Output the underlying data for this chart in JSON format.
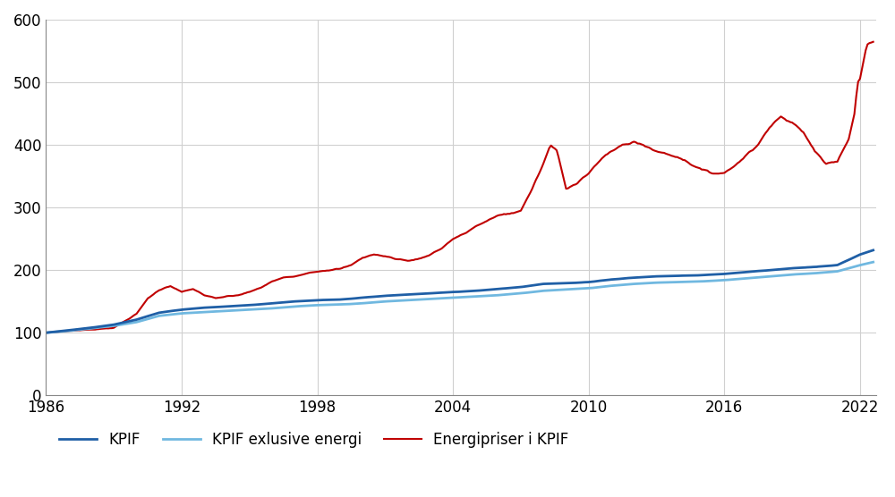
{
  "series": {
    "KPIF": {
      "color": "#1F5FA6",
      "linewidth": 2.0,
      "label": "KPIF"
    },
    "KPIF_excl_energy": {
      "color": "#70B8E0",
      "linewidth": 2.0,
      "label": "KPIF exlusive energi"
    },
    "energy": {
      "color": "#C00000",
      "linewidth": 1.5,
      "label": "Energipriser i KPIF"
    }
  },
  "ylim": [
    0,
    600
  ],
  "yticks": [
    0,
    100,
    200,
    300,
    400,
    500,
    600
  ],
  "xlabel_years": [
    1986,
    1992,
    1998,
    2004,
    2010,
    2016,
    2022
  ],
  "grid_color": "#D0D0D0",
  "background_color": "#FFFFFF",
  "figsize": [
    10.0,
    5.56
  ],
  "dpi": 100,
  "kpif_waypoints": [
    [
      1986.0,
      100
    ],
    [
      1987.0,
      104
    ],
    [
      1988.0,
      108
    ],
    [
      1989.0,
      113
    ],
    [
      1990.0,
      121
    ],
    [
      1991.0,
      132
    ],
    [
      1992.0,
      137
    ],
    [
      1993.0,
      140
    ],
    [
      1994.0,
      142
    ],
    [
      1995.0,
      144
    ],
    [
      1996.0,
      147
    ],
    [
      1997.0,
      150
    ],
    [
      1998.0,
      152
    ],
    [
      1999.0,
      153
    ],
    [
      2000.0,
      156
    ],
    [
      2001.0,
      159
    ],
    [
      2002.0,
      161
    ],
    [
      2003.0,
      163
    ],
    [
      2004.0,
      165
    ],
    [
      2005.0,
      167
    ],
    [
      2006.0,
      170
    ],
    [
      2007.0,
      173
    ],
    [
      2008.0,
      178
    ],
    [
      2009.0,
      179
    ],
    [
      2010.0,
      181
    ],
    [
      2011.0,
      185
    ],
    [
      2012.0,
      188
    ],
    [
      2013.0,
      190
    ],
    [
      2014.0,
      191
    ],
    [
      2015.0,
      192
    ],
    [
      2016.0,
      194
    ],
    [
      2017.0,
      197
    ],
    [
      2018.0,
      200
    ],
    [
      2019.0,
      203
    ],
    [
      2020.0,
      205
    ],
    [
      2021.0,
      208
    ],
    [
      2022.0,
      225
    ],
    [
      2022.6,
      232
    ]
  ],
  "kpif_excl_waypoints": [
    [
      1986.0,
      100
    ],
    [
      1987.0,
      103
    ],
    [
      1988.0,
      107
    ],
    [
      1989.0,
      111
    ],
    [
      1990.0,
      117
    ],
    [
      1991.0,
      127
    ],
    [
      1992.0,
      131
    ],
    [
      1993.0,
      133
    ],
    [
      1994.0,
      135
    ],
    [
      1995.0,
      137
    ],
    [
      1996.0,
      139
    ],
    [
      1997.0,
      142
    ],
    [
      1998.0,
      144
    ],
    [
      1999.0,
      145
    ],
    [
      2000.0,
      147
    ],
    [
      2001.0,
      150
    ],
    [
      2002.0,
      152
    ],
    [
      2003.0,
      154
    ],
    [
      2004.0,
      156
    ],
    [
      2005.0,
      158
    ],
    [
      2006.0,
      160
    ],
    [
      2007.0,
      163
    ],
    [
      2008.0,
      167
    ],
    [
      2009.0,
      169
    ],
    [
      2010.0,
      171
    ],
    [
      2011.0,
      175
    ],
    [
      2012.0,
      178
    ],
    [
      2013.0,
      180
    ],
    [
      2014.0,
      181
    ],
    [
      2015.0,
      182
    ],
    [
      2016.0,
      184
    ],
    [
      2017.0,
      187
    ],
    [
      2018.0,
      190
    ],
    [
      2019.0,
      193
    ],
    [
      2020.0,
      195
    ],
    [
      2021.0,
      198
    ],
    [
      2022.0,
      208
    ],
    [
      2022.6,
      213
    ]
  ],
  "energy_waypoints": [
    [
      1986.0,
      100
    ],
    [
      1987.0,
      103
    ],
    [
      1988.0,
      105
    ],
    [
      1989.0,
      108
    ],
    [
      1990.0,
      130
    ],
    [
      1990.5,
      155
    ],
    [
      1991.0,
      168
    ],
    [
      1991.5,
      175
    ],
    [
      1992.0,
      165
    ],
    [
      1992.5,
      170
    ],
    [
      1993.0,
      160
    ],
    [
      1993.5,
      155
    ],
    [
      1994.0,
      158
    ],
    [
      1994.5,
      160
    ],
    [
      1995.0,
      165
    ],
    [
      1995.5,
      172
    ],
    [
      1996.0,
      182
    ],
    [
      1996.5,
      188
    ],
    [
      1997.0,
      190
    ],
    [
      1997.5,
      195
    ],
    [
      1998.0,
      198
    ],
    [
      1998.5,
      200
    ],
    [
      1999.0,
      202
    ],
    [
      1999.5,
      208
    ],
    [
      2000.0,
      220
    ],
    [
      2000.5,
      225
    ],
    [
      2001.0,
      222
    ],
    [
      2001.5,
      218
    ],
    [
      2002.0,
      215
    ],
    [
      2002.5,
      218
    ],
    [
      2003.0,
      225
    ],
    [
      2003.5,
      235
    ],
    [
      2004.0,
      250
    ],
    [
      2004.5,
      258
    ],
    [
      2005.0,
      270
    ],
    [
      2005.5,
      278
    ],
    [
      2006.0,
      288
    ],
    [
      2006.5,
      290
    ],
    [
      2007.0,
      295
    ],
    [
      2007.5,
      330
    ],
    [
      2008.0,
      370
    ],
    [
      2008.3,
      400
    ],
    [
      2008.6,
      390
    ],
    [
      2009.0,
      330
    ],
    [
      2009.5,
      340
    ],
    [
      2010.0,
      355
    ],
    [
      2010.5,
      375
    ],
    [
      2011.0,
      390
    ],
    [
      2011.5,
      400
    ],
    [
      2012.0,
      405
    ],
    [
      2012.5,
      398
    ],
    [
      2013.0,
      390
    ],
    [
      2013.5,
      385
    ],
    [
      2014.0,
      380
    ],
    [
      2014.5,
      370
    ],
    [
      2015.0,
      360
    ],
    [
      2015.5,
      355
    ],
    [
      2016.0,
      355
    ],
    [
      2016.5,
      368
    ],
    [
      2017.0,
      385
    ],
    [
      2017.5,
      400
    ],
    [
      2018.0,
      430
    ],
    [
      2018.5,
      445
    ],
    [
      2019.0,
      435
    ],
    [
      2019.5,
      420
    ],
    [
      2020.0,
      390
    ],
    [
      2020.5,
      370
    ],
    [
      2021.0,
      375
    ],
    [
      2021.5,
      410
    ],
    [
      2021.75,
      450
    ],
    [
      2021.9,
      500
    ],
    [
      2022.0,
      505
    ],
    [
      2022.3,
      560
    ],
    [
      2022.6,
      565
    ]
  ]
}
